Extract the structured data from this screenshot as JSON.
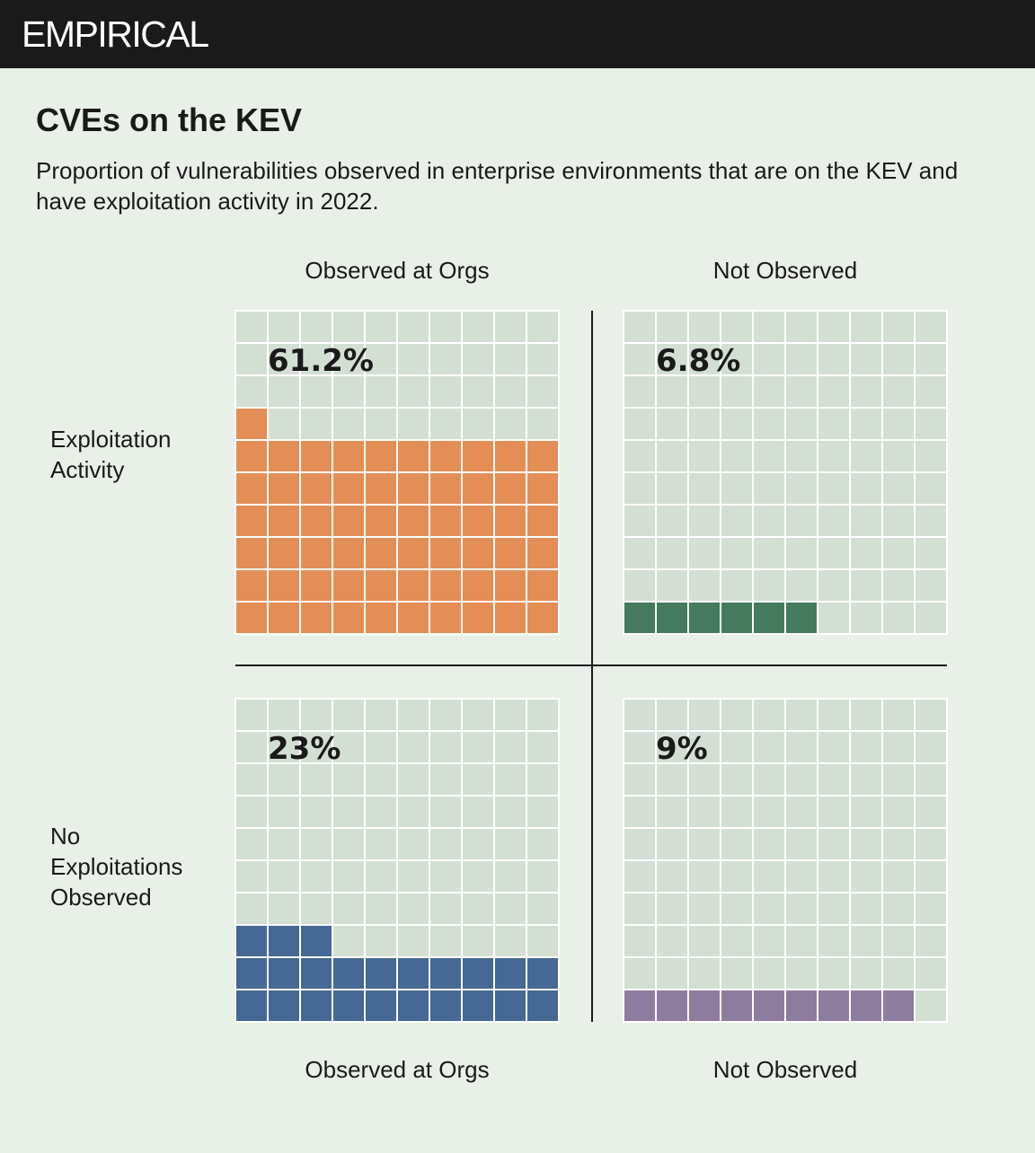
{
  "header": {
    "brand": "EMPIRICAL"
  },
  "title": "CVEs on the KEV",
  "subtitle": "Proportion of vulnerabilities observed in enterprise environments that are on the KEV and have exploitation activity in 2022.",
  "columns": {
    "top_left": "Observed at Orgs",
    "top_right": "Not Observed",
    "bottom_left": "Observed at Orgs",
    "bottom_right": "Not Observed"
  },
  "rows": {
    "top": "Exploitation Activity",
    "bottom_lines": [
      "No",
      "Exploitations",
      "Observed"
    ]
  },
  "colors": {
    "background": "#e9f0e7",
    "empty": "#d3dfd3",
    "grid": "#ffffff",
    "axis": "#1a1a1a"
  },
  "chart_data": {
    "type": "waffle",
    "grid": {
      "rows": 10,
      "cols": 10
    },
    "title": "CVEs on the KEV",
    "row_categories": [
      "Exploitation Activity",
      "No Exploitations Observed"
    ],
    "col_categories": [
      "Observed at Orgs",
      "Not Observed"
    ],
    "cells": [
      {
        "row": "Exploitation Activity",
        "col": "Observed at Orgs",
        "label": "61.2%",
        "value": 61.2,
        "filled_squares": 61,
        "color": "#e48e57"
      },
      {
        "row": "Exploitation Activity",
        "col": "Not Observed",
        "label": "6.8%",
        "value": 6.8,
        "filled_squares": 6,
        "color": "#457a5e"
      },
      {
        "row": "No Exploitations Observed",
        "col": "Observed at Orgs",
        "label": "23%",
        "value": 23,
        "filled_squares": 23,
        "color": "#456894"
      },
      {
        "row": "No Exploitations Observed",
        "col": "Not Observed",
        "label": "9%",
        "value": 9,
        "filled_squares": 9,
        "color": "#8e7c9e"
      }
    ]
  }
}
